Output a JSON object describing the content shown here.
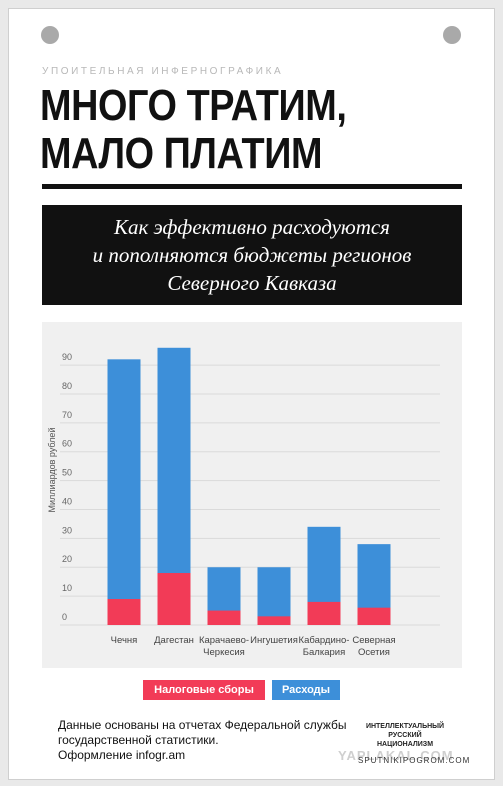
{
  "header": {
    "kicker": "УПОИТЕЛЬНАЯ ИНФЕРНОГРАФИКА",
    "title": "МНОГО ТРАТИМ,\nМАЛО ПЛАТИМ",
    "subtitle": "Как эффективно расходуются\nи пополняются бюджеты регионов\nСеверного Кавказа"
  },
  "chart_data": {
    "type": "bar",
    "ylabel": "Миллиардов рублей",
    "categories": [
      "Чечня",
      "Дагестан",
      "Карачаево-\nЧеркесия",
      "Ингушетия",
      "Кабардино-\nБалкария",
      "Северная\nОсетия"
    ],
    "series": [
      {
        "name": "Расходы",
        "color": "#3d8fd9",
        "values": [
          92,
          96,
          20,
          20,
          34,
          28
        ]
      },
      {
        "name": "Налоговые сборы",
        "color": "#f23b57",
        "values": [
          9,
          18,
          5,
          3,
          8,
          6
        ]
      }
    ],
    "ylim": [
      0,
      98
    ],
    "yticks": [
      0,
      10,
      20,
      30,
      40,
      50,
      60,
      70,
      80,
      90
    ],
    "grid": true
  },
  "footer": {
    "note": "Данные основаны на отчетах Федеральной службы\nгосударственной статистики.\nОформление infogr.am",
    "logo": "ИНТЕЛЛЕКТУАЛЬНЫЙ\nРУССКИЙ\nНАЦИОНАЛИЗМ",
    "site": "SPUTNIKIPOGROM.COM",
    "watermark": "YAPLAKAL.COM"
  }
}
